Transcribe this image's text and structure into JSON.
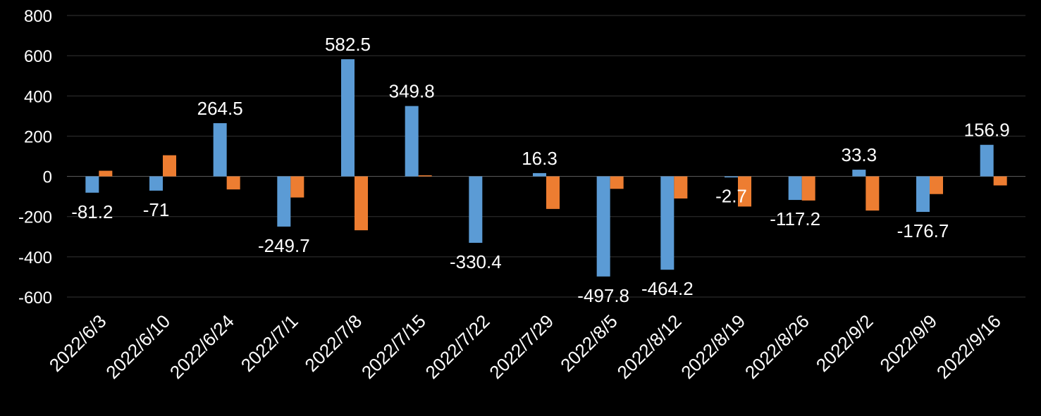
{
  "chart_data": {
    "type": "bar",
    "title": "",
    "xlabel": "",
    "ylabel": "",
    "ylim": [
      -600,
      800
    ],
    "yticks": [
      800,
      600,
      400,
      200,
      0,
      -200,
      -400,
      -600
    ],
    "grid": true,
    "legend": "none",
    "categories": [
      "2022/6/3",
      "2022/6/10",
      "2022/6/24",
      "2022/7/1",
      "2022/7/8",
      "2022/7/15",
      "2022/7/22",
      "2022/7/29",
      "2022/8/5",
      "2022/8/12",
      "2022/8/19",
      "2022/8/26",
      "2022/9/2",
      "2022/9/9",
      "2022/9/16"
    ],
    "series": [
      {
        "name": "series-1",
        "color": "#5b9bd5",
        "values": [
          -81.2,
          -71,
          264.5,
          -249.7,
          582.5,
          349.8,
          -330.4,
          16.3,
          -497.8,
          -464.2,
          -2.7,
          -117.2,
          33.3,
          -176.7,
          156.9
        ],
        "labels": [
          "-81.2",
          "-71",
          "264.5",
          "-249.7",
          "582.5",
          "349.8",
          "-330.4",
          "16.3",
          "-497.8",
          "-464.2",
          "-2.7",
          "-117.2",
          "33.3",
          "-176.7",
          "156.9"
        ]
      },
      {
        "name": "series-2",
        "color": "#ed7d31",
        "values": [
          28,
          105,
          -65,
          -105,
          -268,
          5,
          0,
          -162,
          -62,
          -110,
          -150,
          -120,
          -170,
          -88,
          -45
        ]
      }
    ]
  }
}
